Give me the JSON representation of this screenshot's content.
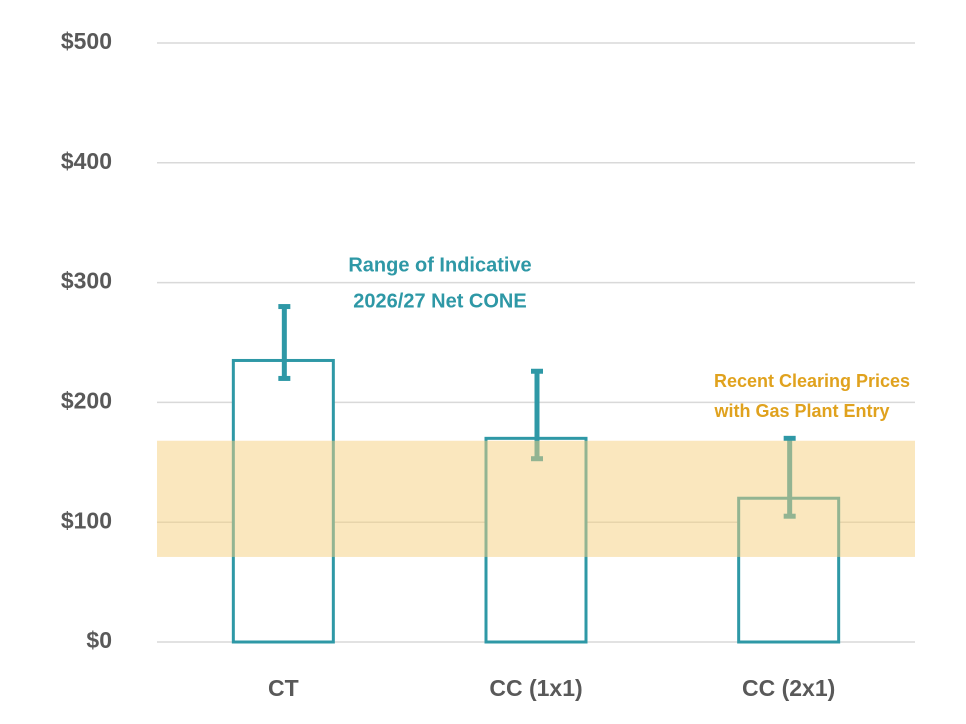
{
  "chart_data": {
    "type": "bar",
    "categories": [
      "CT",
      "CC (1x1)",
      "CC (2x1)"
    ],
    "values": [
      235,
      170,
      120
    ],
    "range_low": [
      220,
      153,
      105
    ],
    "range_high": [
      280,
      226,
      170
    ],
    "color": "#2e98a6",
    "error_color": "#2e98a6",
    "band": [
      71,
      168
    ],
    "band_color": "#f6cf7e",
    "ylim": [
      0,
      500
    ],
    "yticks": [
      {
        "value": 0,
        "label": "$0"
      },
      {
        "value": 100,
        "label": "$100"
      },
      {
        "value": 200,
        "label": "$200"
      },
      {
        "value": 300,
        "label": "$300"
      },
      {
        "value": 400,
        "label": "$400"
      },
      {
        "value": 500,
        "label": "$500"
      }
    ],
    "grid": true,
    "annotations": [
      [
        "Range of Indicative",
        "2026/27 Net CONE"
      ],
      [
        "Recent Clearing Prices",
        "with Gas Plant Entry"
      ]
    ]
  }
}
